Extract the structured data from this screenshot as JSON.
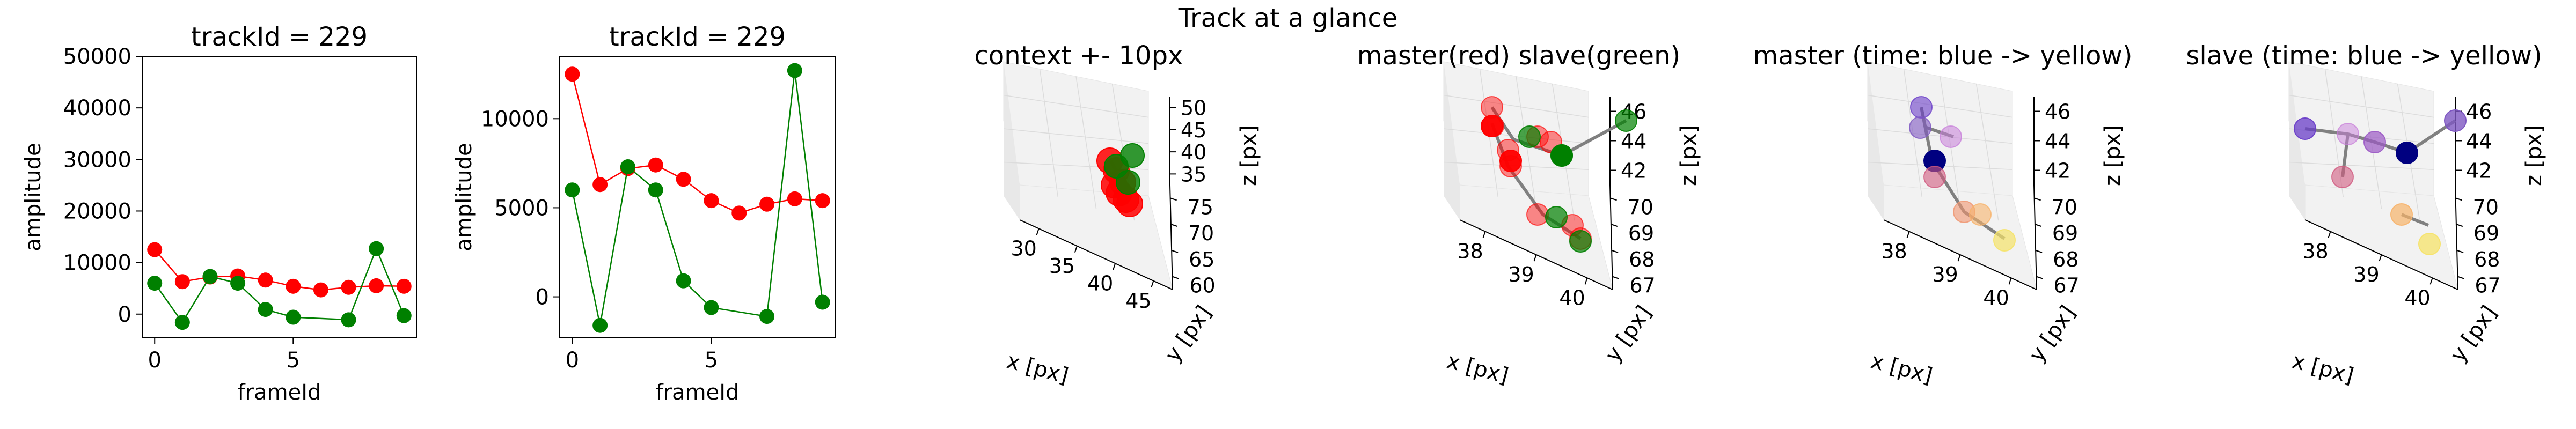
{
  "suptitle": "Track at a glance",
  "colors": {
    "red": "#ff0000",
    "green": "#008000",
    "pane": "#f2f2f2",
    "grid": "#dcdcdc"
  },
  "chart_data": [
    {
      "type": "line",
      "title": "trackId = 229",
      "xlabel": "frameId",
      "ylabel": "amplitude",
      "xlim": [
        -0.45,
        9.45
      ],
      "ylim": [
        -4600,
        50000
      ],
      "xticks": [
        0,
        5
      ],
      "yticks": [
        0,
        10000,
        20000,
        30000,
        40000,
        50000
      ],
      "x": [
        0,
        1,
        2,
        3,
        4,
        5,
        6,
        7,
        8,
        9
      ],
      "series": [
        {
          "color": "#ff0000",
          "values": [
            12500,
            6300,
            7200,
            7400,
            6600,
            5400,
            4700,
            5200,
            5500,
            5400
          ]
        },
        {
          "color": "#008000",
          "x": [
            0,
            1,
            2,
            3,
            4,
            5,
            7,
            8,
            9
          ],
          "values": [
            6000,
            -1600,
            7300,
            6000,
            900,
            -600,
            -1100,
            12700,
            -300
          ]
        }
      ]
    },
    {
      "type": "line",
      "title": "trackId = 229",
      "xlabel": "frameId",
      "ylabel": "amplitude",
      "xlim": [
        -0.45,
        9.45
      ],
      "ylim": [
        -2300,
        13500
      ],
      "xticks": [
        0,
        5
      ],
      "yticks": [
        0,
        5000,
        10000
      ],
      "x": [
        0,
        1,
        2,
        3,
        4,
        5,
        6,
        7,
        8,
        9
      ],
      "series": [
        {
          "color": "#ff0000",
          "values": [
            12500,
            6300,
            7200,
            7400,
            6600,
            5400,
            4700,
            5200,
            5500,
            5400
          ]
        },
        {
          "color": "#008000",
          "x": [
            0,
            1,
            2,
            3,
            4,
            5,
            7,
            8,
            9
          ],
          "values": [
            6000,
            -1600,
            7300,
            6000,
            900,
            -600,
            -1100,
            12700,
            -300
          ]
        }
      ]
    },
    {
      "type": "scatter",
      "projection": "3d",
      "title": "context +- 10px",
      "xlabel": "x [px]",
      "ylabel": "y [px]",
      "zlabel": "z [px]",
      "xticks": [
        "30",
        "35",
        "40",
        "45"
      ],
      "yticks": [
        "60",
        "65",
        "70",
        "75"
      ],
      "zticks": [
        "35",
        "40",
        "45",
        "50"
      ]
    },
    {
      "type": "scatter",
      "projection": "3d",
      "title": "master(red) slave(green)",
      "xlabel": "x [px]",
      "ylabel": "y [px]",
      "zlabel": "z [px]",
      "xticks": [
        "38",
        "39",
        "40"
      ],
      "yticks": [
        "67",
        "68",
        "69",
        "70"
      ],
      "zticks": [
        "42",
        "44",
        "46"
      ]
    },
    {
      "type": "scatter",
      "projection": "3d",
      "title": "master (time: blue -> yellow)",
      "xlabel": "x [px]",
      "ylabel": "y [px]",
      "zlabel": "z [px]",
      "xticks": [
        "38",
        "39",
        "40"
      ],
      "yticks": [
        "67",
        "68",
        "69",
        "70"
      ],
      "zticks": [
        "42",
        "44",
        "46"
      ]
    },
    {
      "type": "scatter",
      "projection": "3d",
      "title": "slave (time: blue -> yellow)",
      "xlabel": "x [px]",
      "ylabel": "y [px]",
      "zlabel": "z [px]",
      "xticks": [
        "38",
        "39",
        "40"
      ],
      "yticks": [
        "67",
        "68",
        "69",
        "70"
      ],
      "zticks": [
        "42",
        "44",
        "46"
      ]
    }
  ]
}
